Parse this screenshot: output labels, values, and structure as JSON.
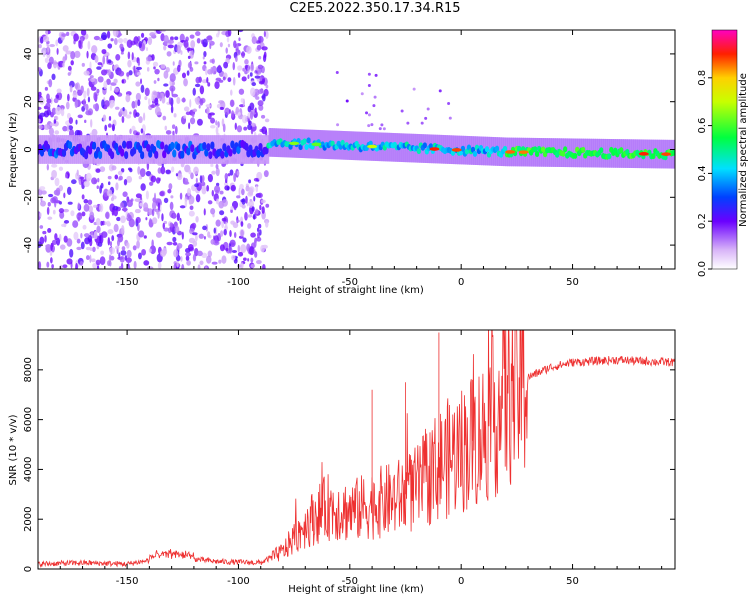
{
  "title": "C2E5.2022.350.17.34.R15",
  "colors": {
    "snr_line": "#ee3030",
    "axis": "#000000"
  },
  "chart_data": [
    {
      "type": "heatmap",
      "xlabel": "Height of straight line (km)",
      "ylabel": "Frequency (Hz)",
      "xlim": [
        -190,
        96
      ],
      "ylim": [
        -50,
        50
      ],
      "xticks": [
        -150,
        -100,
        -50,
        0,
        50
      ],
      "yticks": [
        -40,
        -20,
        0,
        20,
        40
      ],
      "colorbar": {
        "label": "Normalized spectral amplitude",
        "range": [
          0,
          1
        ],
        "ticks": [
          0.0,
          0.2,
          0.4,
          0.6,
          0.8
        ]
      },
      "description_points": [
        {
          "x_range": [
            -190,
            -87
          ],
          "pattern": "scattered noise all frequencies, ridge near 0 Hz",
          "amplitude": 0.15
        },
        {
          "x_range": [
            -87,
            20
          ],
          "pattern": "signal ridge near 0 Hz, slight upward offset ~3 Hz at -80",
          "amplitude": 0.5
        },
        {
          "x_range": [
            20,
            96
          ],
          "pattern": "strong narrow ridge near -1 Hz",
          "amplitude": 0.6
        }
      ]
    },
    {
      "type": "line",
      "xlabel": "Height of straight line (km)",
      "ylabel": "SNR (10 * v/v)",
      "xlim": [
        -190,
        96
      ],
      "ylim": [
        0,
        9600
      ],
      "xticks": [
        -150,
        -100,
        -50,
        0,
        50
      ],
      "yticks": [
        0,
        2000,
        4000,
        6000,
        8000
      ],
      "series": [
        {
          "x": [
            -190,
            -170,
            -150,
            -130,
            -110,
            -90,
            -80,
            -70,
            -60,
            -50,
            -40,
            -30,
            -20,
            -10,
            0,
            10,
            20,
            30,
            40,
            50,
            60,
            70,
            80,
            96
          ],
          "y": [
            200,
            250,
            200,
            500,
            300,
            250,
            700,
            1800,
            2500,
            2300,
            2600,
            2800,
            3200,
            4200,
            4800,
            5500,
            6900,
            7700,
            8100,
            8300,
            8350,
            8400,
            8350,
            8300
          ]
        }
      ]
    }
  ]
}
